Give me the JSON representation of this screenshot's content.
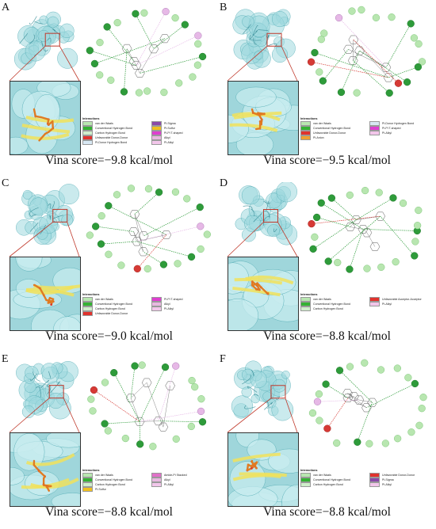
{
  "panels": [
    {
      "letter": "A",
      "score": "Vina score=−9.8 kcal/mol",
      "legend_title": "Interactions",
      "legend": [
        {
          "label": "van der Waals",
          "color": "#b8e6b0"
        },
        {
          "label": "Conventional Hydrogen Bond",
          "color": "#34b233"
        },
        {
          "label": "Carbon Hydrogen Bond",
          "color": "#cfeecb"
        },
        {
          "label": "Unfavorable Donor-Donor",
          "color": "#e0332e"
        },
        {
          "label": "Pi-Donor Hydrogen Bond",
          "color": "#d8e8f3"
        },
        {
          "label": "Pi-Sigma",
          "color": "#8a4aa8"
        },
        {
          "label": "Pi-Sulfur",
          "color": "#f0c020"
        },
        {
          "label": "Pi-Pi T-shaped",
          "color": "#de3ed0"
        },
        {
          "label": "Alkyl",
          "color": "#e8b8e0"
        },
        {
          "label": "Pi-Alkyl",
          "color": "#f2c6ea"
        }
      ]
    },
    {
      "letter": "B",
      "score": "Vina score=−9.5 kcal/mol",
      "legend_title": "Interactions",
      "legend": [
        {
          "label": "van der Waals",
          "color": "#b8e6b0"
        },
        {
          "label": "Conventional Hydrogen Bond",
          "color": "#34b233"
        },
        {
          "label": "Unfavorable Donor-Donor",
          "color": "#e0332e"
        },
        {
          "label": "Pi-Anion",
          "color": "#f0a030"
        },
        {
          "label": "Pi-Donor Hydrogen Bond",
          "color": "#d8e8f3"
        },
        {
          "label": "Pi-Pi T-shaped",
          "color": "#de3ed0"
        },
        {
          "label": "Pi-Alkyl",
          "color": "#f2c6ea"
        }
      ]
    },
    {
      "letter": "C",
      "score": "Vina score=−9.0 kcal/mol",
      "legend_title": "Interactions",
      "legend": [
        {
          "label": "van der Waals",
          "color": "#b8e6b0"
        },
        {
          "label": "Conventional Hydrogen Bond",
          "color": "#34b233"
        },
        {
          "label": "Carbon Hydrogen Bond",
          "color": "#cfeecb"
        },
        {
          "label": "Unfavorable Donor-Donor",
          "color": "#e0332e"
        },
        {
          "label": "Pi-Pi T-shaped",
          "color": "#de3ed0"
        },
        {
          "label": "Alkyl",
          "color": "#e8b8e0"
        },
        {
          "label": "Pi-Alkyl",
          "color": "#f2c6ea"
        }
      ]
    },
    {
      "letter": "D",
      "score": "Vina score=−8.8 kcal/mol",
      "legend_title": "Interactions",
      "legend": [
        {
          "label": "van der Waals",
          "color": "#b8e6b0"
        },
        {
          "label": "Conventional Hydrogen Bond",
          "color": "#34b233"
        },
        {
          "label": "Carbon Hydrogen Bond",
          "color": "#cfeecb"
        },
        {
          "label": "Unfavorable Acceptor-Acceptor",
          "color": "#e0332e"
        },
        {
          "label": "Pi-Alkyl",
          "color": "#f2c6ea"
        }
      ]
    },
    {
      "letter": "E",
      "score": "Vina score=−8.8 kcal/mol",
      "legend_title": "Interactions",
      "legend": [
        {
          "label": "van der Waals",
          "color": "#b8e6b0"
        },
        {
          "label": "Conventional Hydrogen Bond",
          "color": "#34b233"
        },
        {
          "label": "Carbon Hydrogen Bond",
          "color": "#cfeecb"
        },
        {
          "label": "Pi-Sulfur",
          "color": "#f0c020"
        },
        {
          "label": "Amide-Pi Stacked",
          "color": "#e070c8"
        },
        {
          "label": "Alkyl",
          "color": "#e8b8e0"
        },
        {
          "label": "Pi-Alkyl",
          "color": "#f2c6ea"
        }
      ]
    },
    {
      "letter": "F",
      "score": "Vina score=−8.8 kcal/mol",
      "legend_title": "Interactions",
      "legend": [
        {
          "label": "van der Waals",
          "color": "#b8e6b0"
        },
        {
          "label": "Conventional Hydrogen Bond",
          "color": "#34b233"
        },
        {
          "label": "Carbon Hydrogen Bond",
          "color": "#cfeecb"
        },
        {
          "label": "Unfavorable Donor-Donor",
          "color": "#e0332e"
        },
        {
          "label": "Pi-Sigma",
          "color": "#8a4aa8"
        },
        {
          "label": "Pi-Alkyl",
          "color": "#f2c6ea"
        }
      ]
    }
  ],
  "colors": {
    "protein_surface": "#9fd8de",
    "protein_edge": "#4fa9b3",
    "pocket_box": "#c0392b",
    "ligand": "#e07b22",
    "helix": "#f1e25a",
    "residue_vdw": "#b8e6b0",
    "residue_hbond": "#2e9b3a",
    "residue_unfav": "#d63a35"
  }
}
